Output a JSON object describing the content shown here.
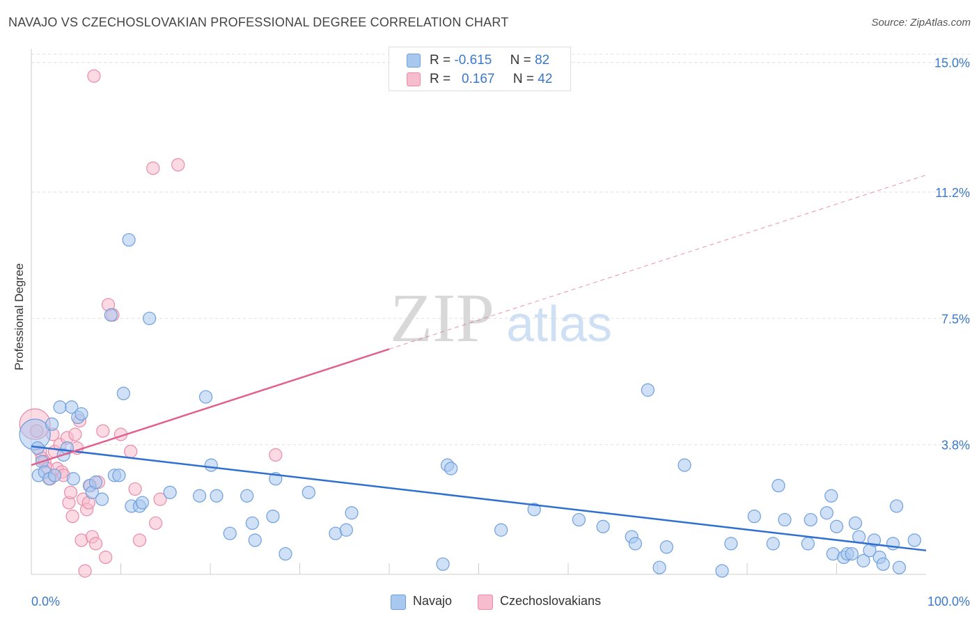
{
  "title": "NAVAJO VS CZECHOSLOVAKIAN PROFESSIONAL DEGREE CORRELATION CHART",
  "source": "Source: ZipAtlas.com",
  "watermark": {
    "zip": "ZIP",
    "atlas": "atlas"
  },
  "legend": {
    "navajo": {
      "r_label": "R =",
      "r_value": "-0.615",
      "n_label": "N =",
      "n_value": "82"
    },
    "czech": {
      "r_label": "R =",
      "r_value": "0.167",
      "n_label": "N =",
      "n_value": "42"
    }
  },
  "colors": {
    "navajo_fill": "#a9c8f0",
    "navajo_stroke": "#6d9fdc",
    "navajo_line": "#2f6fd0",
    "czech_fill": "#f7bccd",
    "czech_stroke": "#e98aa8",
    "czech_line": "#e0628c",
    "axis_text": "#3a78c9",
    "grid": "#dddddd"
  },
  "chart_data": {
    "type": "scatter",
    "title": "NAVAJO VS CZECHOSLOVAKIAN PROFESSIONAL DEGREE CORRELATION CHART",
    "xlabel": "",
    "ylabel": "Professional Degree",
    "xlim": [
      0,
      100
    ],
    "ylim": [
      0,
      15.4
    ],
    "x_tick_labels": [
      "0.0%",
      "100.0%"
    ],
    "y_ticks": [
      3.8,
      7.5,
      11.2,
      15.0
    ],
    "y_tick_labels": [
      "3.8%",
      "7.5%",
      "11.2%",
      "15.0%"
    ],
    "legend_position": "bottom-center",
    "series": [
      {
        "name": "Navajo",
        "r": -0.615,
        "n": 82,
        "trend": {
          "x": [
            0,
            100
          ],
          "y": [
            3.75,
            0.7
          ],
          "style": "solid"
        },
        "points": [
          {
            "x": 0.4,
            "y": 4.1,
            "big": true
          },
          {
            "x": 0.7,
            "y": 3.7
          },
          {
            "x": 0.8,
            "y": 2.9
          },
          {
            "x": 1.2,
            "y": 3.3
          },
          {
            "x": 1.5,
            "y": 3.0
          },
          {
            "x": 2.0,
            "y": 2.8
          },
          {
            "x": 2.3,
            "y": 4.4
          },
          {
            "x": 2.6,
            "y": 2.9
          },
          {
            "x": 3.2,
            "y": 4.9
          },
          {
            "x": 3.6,
            "y": 3.5
          },
          {
            "x": 4.0,
            "y": 3.7
          },
          {
            "x": 4.5,
            "y": 4.9
          },
          {
            "x": 4.7,
            "y": 2.8
          },
          {
            "x": 5.2,
            "y": 4.6
          },
          {
            "x": 5.6,
            "y": 4.7
          },
          {
            "x": 6.5,
            "y": 2.6
          },
          {
            "x": 6.8,
            "y": 2.4
          },
          {
            "x": 7.2,
            "y": 2.7
          },
          {
            "x": 7.9,
            "y": 2.2
          },
          {
            "x": 8.9,
            "y": 7.6
          },
          {
            "x": 9.3,
            "y": 2.9
          },
          {
            "x": 9.8,
            "y": 2.9
          },
          {
            "x": 10.3,
            "y": 5.3
          },
          {
            "x": 10.9,
            "y": 9.8
          },
          {
            "x": 11.2,
            "y": 2.0
          },
          {
            "x": 12.1,
            "y": 2.0
          },
          {
            "x": 12.4,
            "y": 2.1
          },
          {
            "x": 13.2,
            "y": 7.5
          },
          {
            "x": 15.5,
            "y": 2.4
          },
          {
            "x": 18.8,
            "y": 2.3
          },
          {
            "x": 19.5,
            "y": 5.2
          },
          {
            "x": 20.1,
            "y": 3.2
          },
          {
            "x": 20.7,
            "y": 2.3
          },
          {
            "x": 22.2,
            "y": 1.2
          },
          {
            "x": 24.1,
            "y": 2.3
          },
          {
            "x": 24.7,
            "y": 1.5
          },
          {
            "x": 25.0,
            "y": 1.0
          },
          {
            "x": 27.0,
            "y": 1.7
          },
          {
            "x": 27.3,
            "y": 2.8
          },
          {
            "x": 28.4,
            "y": 0.6
          },
          {
            "x": 31.0,
            "y": 2.4
          },
          {
            "x": 34.0,
            "y": 1.2
          },
          {
            "x": 35.2,
            "y": 1.3
          },
          {
            "x": 35.8,
            "y": 1.8
          },
          {
            "x": 46.0,
            "y": 0.3
          },
          {
            "x": 46.5,
            "y": 3.2
          },
          {
            "x": 46.9,
            "y": 3.1
          },
          {
            "x": 52.5,
            "y": 1.3
          },
          {
            "x": 56.2,
            "y": 1.9
          },
          {
            "x": 61.2,
            "y": 1.6
          },
          {
            "x": 63.9,
            "y": 1.4
          },
          {
            "x": 68.9,
            "y": 5.4
          },
          {
            "x": 67.1,
            "y": 1.1
          },
          {
            "x": 67.5,
            "y": 0.9
          },
          {
            "x": 70.2,
            "y": 0.2
          },
          {
            "x": 71.0,
            "y": 0.8
          },
          {
            "x": 73.0,
            "y": 3.2
          },
          {
            "x": 77.2,
            "y": 0.1
          },
          {
            "x": 78.2,
            "y": 0.9
          },
          {
            "x": 80.8,
            "y": 1.7
          },
          {
            "x": 82.9,
            "y": 0.9
          },
          {
            "x": 83.5,
            "y": 2.6
          },
          {
            "x": 84.2,
            "y": 1.6
          },
          {
            "x": 86.8,
            "y": 0.9
          },
          {
            "x": 87.1,
            "y": 1.6
          },
          {
            "x": 88.9,
            "y": 1.8
          },
          {
            "x": 89.4,
            "y": 2.3
          },
          {
            "x": 89.6,
            "y": 0.6
          },
          {
            "x": 90.0,
            "y": 1.4
          },
          {
            "x": 90.8,
            "y": 0.5
          },
          {
            "x": 91.2,
            "y": 0.6
          },
          {
            "x": 91.7,
            "y": 0.6
          },
          {
            "x": 92.1,
            "y": 1.5
          },
          {
            "x": 92.5,
            "y": 1.1
          },
          {
            "x": 93.0,
            "y": 0.4
          },
          {
            "x": 93.7,
            "y": 0.7
          },
          {
            "x": 94.2,
            "y": 1.0
          },
          {
            "x": 94.8,
            "y": 0.5
          },
          {
            "x": 95.2,
            "y": 0.3
          },
          {
            "x": 96.3,
            "y": 0.9
          },
          {
            "x": 96.7,
            "y": 2.0
          },
          {
            "x": 97.0,
            "y": 0.2
          },
          {
            "x": 98.7,
            "y": 1.0
          }
        ]
      },
      {
        "name": "Czechoslovakians",
        "r": 0.167,
        "n": 42,
        "trend": {
          "x": [
            0,
            40
          ],
          "y": [
            3.2,
            6.6
          ],
          "style": "solid",
          "extension": {
            "x": [
              40,
              100
            ],
            "y": [
              6.6,
              11.7
            ],
            "style": "dashed"
          }
        },
        "points": [
          {
            "x": 0.4,
            "y": 4.4,
            "big": true
          },
          {
            "x": 0.6,
            "y": 4.2
          },
          {
            "x": 1.0,
            "y": 3.6
          },
          {
            "x": 1.2,
            "y": 3.4
          },
          {
            "x": 1.5,
            "y": 3.3
          },
          {
            "x": 1.8,
            "y": 3.1
          },
          {
            "x": 2.1,
            "y": 2.8
          },
          {
            "x": 2.4,
            "y": 4.1
          },
          {
            "x": 2.6,
            "y": 3.6
          },
          {
            "x": 2.9,
            "y": 3.1
          },
          {
            "x": 3.2,
            "y": 3.8
          },
          {
            "x": 3.4,
            "y": 3.0
          },
          {
            "x": 3.6,
            "y": 2.9
          },
          {
            "x": 4.0,
            "y": 4.0
          },
          {
            "x": 4.2,
            "y": 2.1
          },
          {
            "x": 4.4,
            "y": 2.4
          },
          {
            "x": 4.6,
            "y": 1.7
          },
          {
            "x": 4.9,
            "y": 4.1
          },
          {
            "x": 5.1,
            "y": 3.7
          },
          {
            "x": 5.4,
            "y": 4.5
          },
          {
            "x": 5.6,
            "y": 1.0
          },
          {
            "x": 5.8,
            "y": 2.2
          },
          {
            "x": 6.0,
            "y": 0.1
          },
          {
            "x": 6.2,
            "y": 1.9
          },
          {
            "x": 6.4,
            "y": 2.1
          },
          {
            "x": 6.6,
            "y": 2.6
          },
          {
            "x": 6.8,
            "y": 1.1
          },
          {
            "x": 7.0,
            "y": 14.6
          },
          {
            "x": 7.2,
            "y": 0.9
          },
          {
            "x": 7.5,
            "y": 2.7
          },
          {
            "x": 8.0,
            "y": 4.2
          },
          {
            "x": 8.3,
            "y": 0.5
          },
          {
            "x": 8.6,
            "y": 7.9
          },
          {
            "x": 9.1,
            "y": 7.6
          },
          {
            "x": 10.0,
            "y": 4.1
          },
          {
            "x": 11.1,
            "y": 3.6
          },
          {
            "x": 11.6,
            "y": 2.5
          },
          {
            "x": 12.1,
            "y": 1.0
          },
          {
            "x": 13.6,
            "y": 11.9
          },
          {
            "x": 13.9,
            "y": 1.5
          },
          {
            "x": 14.4,
            "y": 2.2
          },
          {
            "x": 16.4,
            "y": 12.0
          },
          {
            "x": 27.3,
            "y": 3.5
          }
        ]
      }
    ]
  }
}
